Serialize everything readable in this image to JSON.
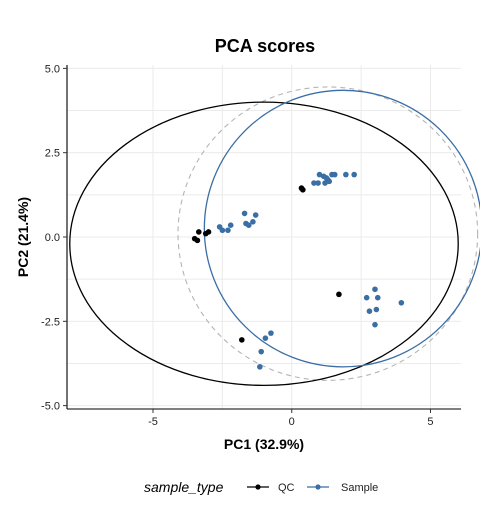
{
  "chart_data": {
    "type": "scatter",
    "title": "PCA scores",
    "xlabel": "PC1 (32.9%)",
    "ylabel": "PC2 (21.4%)",
    "xlim": [
      -8.1,
      6.1
    ],
    "ylim": [
      -5.1,
      5.1
    ],
    "x_ticks": [
      -5,
      0,
      5
    ],
    "x_tick_labels": [
      "-5",
      "0",
      "5"
    ],
    "y_ticks": [
      -5,
      -2.5,
      0,
      2.5,
      5
    ],
    "y_tick_labels": [
      "-5.0",
      "-2.5",
      "0.0",
      "2.5",
      "5.0"
    ],
    "grid": true,
    "legend": {
      "title": "sample_type",
      "position": "bottom",
      "entries": [
        "QC",
        "Sample"
      ]
    },
    "series": [
      {
        "name": "QC",
        "color": "#000000",
        "points": [
          [
            -3.5,
            -0.05
          ],
          [
            -3.35,
            0.15
          ],
          [
            -3.1,
            0.1
          ],
          [
            -3.0,
            0.15
          ],
          [
            -3.4,
            -0.1
          ],
          [
            0.35,
            1.45
          ],
          [
            0.4,
            1.4
          ],
          [
            1.7,
            -1.7
          ],
          [
            -1.8,
            -3.05
          ]
        ],
        "ellipse": {
          "cx": -1.0,
          "cy": -0.2,
          "rx": 7.0,
          "ry": 4.2
        }
      },
      {
        "name": "Sample",
        "color": "#3a6ea5",
        "points": [
          [
            -2.6,
            0.3
          ],
          [
            -2.5,
            0.2
          ],
          [
            -2.3,
            0.2
          ],
          [
            -2.2,
            0.35
          ],
          [
            -1.7,
            0.7
          ],
          [
            -1.65,
            0.4
          ],
          [
            -1.55,
            0.35
          ],
          [
            -1.4,
            0.45
          ],
          [
            -1.3,
            0.65
          ],
          [
            0.8,
            1.6
          ],
          [
            0.95,
            1.6
          ],
          [
            1.0,
            1.85
          ],
          [
            1.15,
            1.8
          ],
          [
            1.2,
            1.6
          ],
          [
            1.3,
            1.7
          ],
          [
            1.35,
            1.65
          ],
          [
            1.45,
            1.85
          ],
          [
            1.55,
            1.85
          ],
          [
            1.95,
            1.85
          ],
          [
            2.25,
            1.85
          ],
          [
            1.25,
            1.75
          ],
          [
            2.7,
            -1.8
          ],
          [
            2.8,
            -2.2
          ],
          [
            3.0,
            -1.55
          ],
          [
            3.05,
            -2.15
          ],
          [
            3.1,
            -1.8
          ],
          [
            3.0,
            -2.6
          ],
          [
            3.95,
            -1.95
          ],
          [
            -0.75,
            -2.85
          ],
          [
            -0.95,
            -3.0
          ],
          [
            -1.1,
            -3.4
          ],
          [
            -1.15,
            -3.85
          ]
        ],
        "ellipse": {
          "cx": 1.85,
          "cy": 0.25,
          "rx": 5.0,
          "ry": 4.1
        }
      }
    ],
    "reference_ellipse": {
      "style": "dashed",
      "color": "#b4b4b4",
      "cx": 1.3,
      "cy": 0.1,
      "rx": 5.4,
      "ry": 4.35
    }
  }
}
